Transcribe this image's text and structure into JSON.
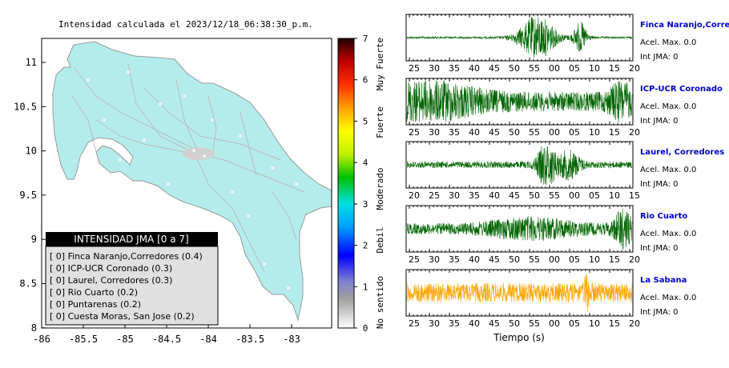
{
  "map": {
    "title": "Intensidad calculada el 2023/12/18_06:38:30_p.m.",
    "x_ticks": [
      "-86",
      "-85.5",
      "-85",
      "-84.5",
      "-84",
      "-83.5",
      "-83"
    ],
    "y_ticks": [
      "11",
      "10.5",
      "10",
      "9.5",
      "9",
      "8.5",
      "8"
    ],
    "land_color": "#b4ecec",
    "legend": {
      "title": "INTENSIDAD JMA [0 a 7]",
      "items": [
        "[ 0]  Finca Naranjo,Corredores (0.4)",
        "[ 0]  ICP-UCR Coronado (0.3)",
        "[ 0]  Laurel, Corredores (0.3)",
        "[ 0]  Rio Cuarto (0.2)",
        "[ 0]  Puntarenas (0.2)",
        "[ 0]  Cuesta Moras, San Jose (0.2)"
      ]
    }
  },
  "colorbar": {
    "ticks": [
      "7",
      "6",
      "5",
      "4",
      "3",
      "2",
      "1",
      "0"
    ],
    "labels": [
      "Muy Fuerte",
      "Fuerte",
      "Moderado",
      "Debil",
      "No sentido"
    ]
  },
  "waveforms": {
    "xlabel": "Tiempo (s)",
    "panels": [
      {
        "station": "Finca Naranjo,Corredores",
        "acel": "Acel. Max. 0.0",
        "jma": "Int JMA: 0",
        "color": "#006400",
        "ticks": [
          "25",
          "30",
          "35",
          "40",
          "45",
          "50",
          "55",
          "00",
          "05",
          "10",
          "15",
          "20"
        ]
      },
      {
        "station": "ICP-UCR Coronado",
        "acel": "Acel. Max. 0.0",
        "jma": "Int JMA: 0",
        "color": "#006400",
        "ticks": [
          "25",
          "30",
          "35",
          "40",
          "45",
          "50",
          "55",
          "00",
          "05",
          "10",
          "15",
          "20"
        ]
      },
      {
        "station": "Laurel, Corredores",
        "acel": "Acel. Max. 0.0",
        "jma": "Int JMA: 0",
        "color": "#006400",
        "ticks": [
          "20",
          "25",
          "30",
          "35",
          "40",
          "45",
          "50",
          "55",
          "00",
          "05",
          "10",
          "15"
        ]
      },
      {
        "station": "Rio Cuarto",
        "acel": "Acel. Max. 0.0",
        "jma": "Int JMA: 0",
        "color": "#006400",
        "ticks": [
          "25",
          "30",
          "35",
          "40",
          "45",
          "50",
          "55",
          "00",
          "05",
          "10",
          "15",
          "20"
        ]
      },
      {
        "station": "La Sabana",
        "acel": "Acel. Max. 0.0",
        "jma": "Int JMA: 0",
        "color": "#ffa500",
        "ticks": [
          "25",
          "30",
          "35",
          "40",
          "45",
          "50",
          "55",
          "00",
          "05",
          "10",
          "15",
          "20"
        ]
      }
    ]
  },
  "chart_data": [
    {
      "type": "scatter",
      "title": "Intensidad calculada el 2023/12/18_06:38:30_p.m.",
      "xlim": [
        -86,
        -82.6
      ],
      "ylim": [
        8,
        11.3
      ],
      "legend_title": "INTENSIDAD JMA [0 a 7]",
      "legend_placement": "bottom-left",
      "stations": [
        {
          "name": "Finca Naranjo,Corredores",
          "jma": 0,
          "value": 0.4
        },
        {
          "name": "ICP-UCR Coronado",
          "jma": 0,
          "value": 0.3
        },
        {
          "name": "Laurel, Corredores",
          "jma": 0,
          "value": 0.3
        },
        {
          "name": "Rio Cuarto",
          "jma": 0,
          "value": 0.2
        },
        {
          "name": "Puntarenas",
          "jma": 0,
          "value": 0.2
        },
        {
          "name": "Cuesta Moras, San Jose",
          "jma": 0,
          "value": 0.2
        }
      ],
      "colorbar": {
        "min": 0,
        "max": 7
      }
    },
    {
      "type": "line",
      "xlabel": "Tiempo (s)",
      "series": [
        {
          "name": "Finca Naranjo,Corredores",
          "peak_window": "55-10"
        },
        {
          "name": "ICP-UCR Coronado",
          "peak_window": "25-35"
        },
        {
          "name": "Laurel, Corredores",
          "peak_window": "50-00"
        },
        {
          "name": "Rio Cuarto",
          "peak_window": "15-20"
        },
        {
          "name": "La Sabana",
          "peak_window": "10"
        }
      ]
    }
  ]
}
